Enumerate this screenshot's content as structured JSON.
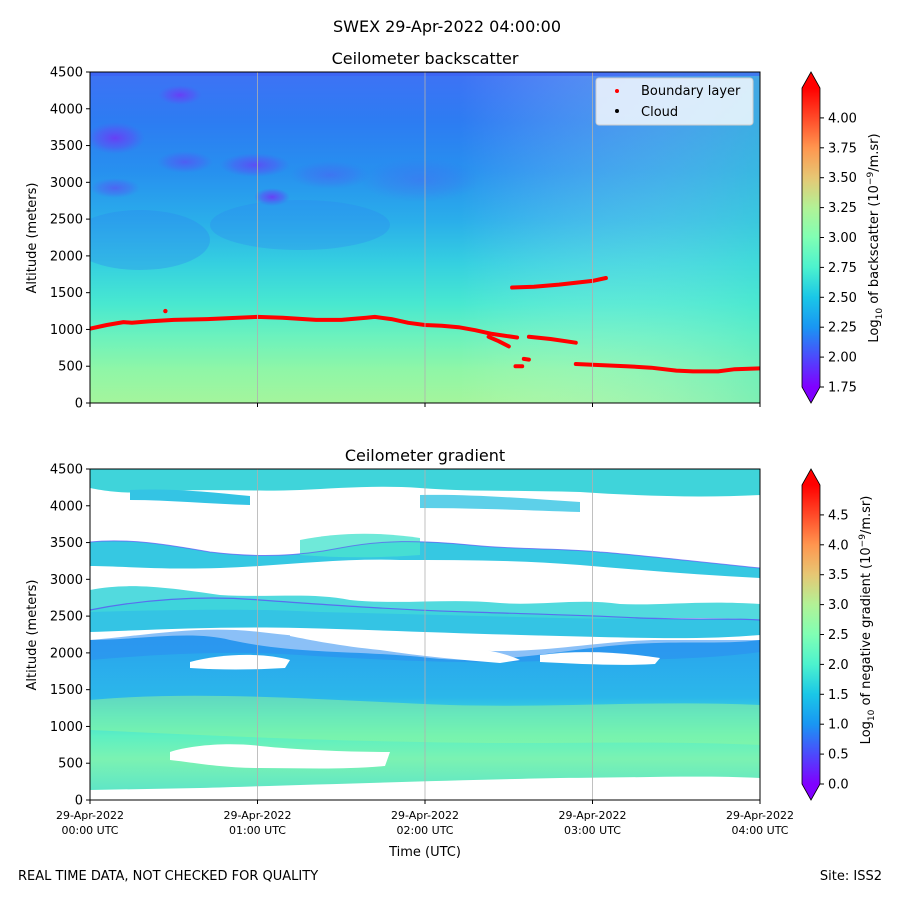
{
  "figure": {
    "suptitle": "SWEX 29-Apr-2022 04:00:00",
    "footer_left": "REAL TIME DATA, NOT CHECKED FOR QUALITY",
    "footer_right": "Site: ISS2",
    "xlabel": "Time (UTC)",
    "xticks": [
      {
        "line1": "29-Apr-2022",
        "line2": "00:00 UTC",
        "hour": 0
      },
      {
        "line1": "29-Apr-2022",
        "line2": "01:00 UTC",
        "hour": 1
      },
      {
        "line1": "29-Apr-2022",
        "line2": "02:00 UTC",
        "hour": 2
      },
      {
        "line1": "29-Apr-2022",
        "line2": "03:00 UTC",
        "hour": 3
      },
      {
        "line1": "29-Apr-2022",
        "line2": "04:00 UTC",
        "hour": 4
      }
    ]
  },
  "chart_data": [
    {
      "type": "heatmap",
      "title": "Ceilometer backscatter",
      "ylabel": "Altitude (meters)",
      "xlim_hours": [
        0,
        4
      ],
      "ylim": [
        0,
        4500
      ],
      "yticks": [
        0,
        500,
        1000,
        1500,
        2000,
        2500,
        3000,
        3500,
        4000,
        4500
      ],
      "colorbar": {
        "label_prefix": "Log",
        "label_sub": "10",
        "label_mid": " of backscatter (10",
        "label_sup": "−9",
        "label_suffix": "/m.sr)",
        "min": 1.75,
        "max": 4.25,
        "extend": "both",
        "ticks": [
          "1.75",
          "2.00",
          "2.25",
          "2.50",
          "2.75",
          "3.00",
          "3.25",
          "3.50",
          "3.75",
          "4.00"
        ],
        "colormap": "rainbow"
      },
      "legend": {
        "position": "upper right",
        "entries": [
          {
            "label": "Boundary layer",
            "color": "#ff0000"
          },
          {
            "label": "Cloud",
            "color": "#000000"
          }
        ]
      },
      "series": [
        {
          "name": "Boundary layer",
          "color": "#ff0000",
          "segments": [
            [
              [
                0.0,
                1010
              ],
              [
                0.1,
                1060
              ],
              [
                0.2,
                1100
              ],
              [
                0.25,
                1090
              ],
              [
                0.35,
                1110
              ],
              [
                0.5,
                1130
              ],
              [
                0.7,
                1140
              ],
              [
                0.85,
                1155
              ],
              [
                1.0,
                1170
              ],
              [
                1.15,
                1160
              ],
              [
                1.35,
                1130
              ],
              [
                1.5,
                1130
              ],
              [
                1.65,
                1160
              ],
              [
                1.7,
                1170
              ],
              [
                1.8,
                1140
              ],
              [
                1.9,
                1090
              ],
              [
                2.0,
                1060
              ],
              [
                2.1,
                1050
              ],
              [
                2.2,
                1030
              ],
              [
                2.3,
                990
              ],
              [
                2.4,
                940
              ],
              [
                2.55,
                890
              ]
            ],
            [
              [
                2.38,
                900
              ],
              [
                2.44,
                840
              ],
              [
                2.5,
                770
              ]
            ],
            [
              [
                2.62,
                900
              ],
              [
                2.75,
                870
              ],
              [
                2.9,
                820
              ]
            ],
            [
              [
                2.52,
                1570
              ],
              [
                2.65,
                1580
              ],
              [
                2.8,
                1610
              ],
              [
                3.0,
                1660
              ],
              [
                3.08,
                1700
              ]
            ],
            [
              [
                2.9,
                530
              ],
              [
                3.0,
                520
              ],
              [
                3.2,
                500
              ],
              [
                3.35,
                480
              ],
              [
                3.5,
                440
              ],
              [
                3.6,
                430
              ],
              [
                3.75,
                430
              ],
              [
                3.85,
                460
              ],
              [
                4.0,
                470
              ]
            ],
            [
              [
                2.54,
                500
              ],
              [
                2.58,
                500
              ]
            ],
            [
              [
                2.59,
                600
              ],
              [
                2.62,
                590
              ]
            ]
          ],
          "points": [
            [
              0.45,
              1250
            ]
          ]
        },
        {
          "name": "Cloud",
          "color": "#000000",
          "points": []
        }
      ],
      "field_description_values": {
        "surface_to_1000m": 2.9,
        "1000_to_2000m": 2.6,
        "2000_to_3000m": 2.4,
        "3000_to_4500m": 2.3,
        "minimum_patches": 1.9
      }
    },
    {
      "type": "heatmap",
      "title": "Ceilometer gradient",
      "ylabel": "Altitude (meters)",
      "xlim_hours": [
        0,
        4
      ],
      "ylim": [
        0,
        4500
      ],
      "yticks": [
        0,
        500,
        1000,
        1500,
        2000,
        2500,
        3000,
        3500,
        4000,
        4500
      ],
      "colorbar": {
        "label_prefix": "Log",
        "label_sub": "10",
        "label_mid": " of negative gradient (10",
        "label_sup": "−9",
        "label_suffix": "/m.sr)",
        "min": 0.0,
        "max": 5.0,
        "extend": "both",
        "ticks": [
          "0.0",
          "0.5",
          "1.0",
          "1.5",
          "2.0",
          "2.5",
          "3.0",
          "3.5",
          "4.0",
          "4.5"
        ],
        "colormap": "rainbow"
      },
      "bands": [
        {
          "name": "lower-layer",
          "from_m": 200,
          "to_m": 2200,
          "level": 2.0
        },
        {
          "name": "mid-layer",
          "from_m": 2200,
          "to_m": 2900,
          "level": 1.6
        },
        {
          "name": "upper-layer",
          "from_m": 3100,
          "to_m": 3600,
          "level": 1.7
        },
        {
          "name": "top-layer",
          "from_m": 3800,
          "to_m": 4500,
          "level": 1.8
        }
      ]
    }
  ]
}
